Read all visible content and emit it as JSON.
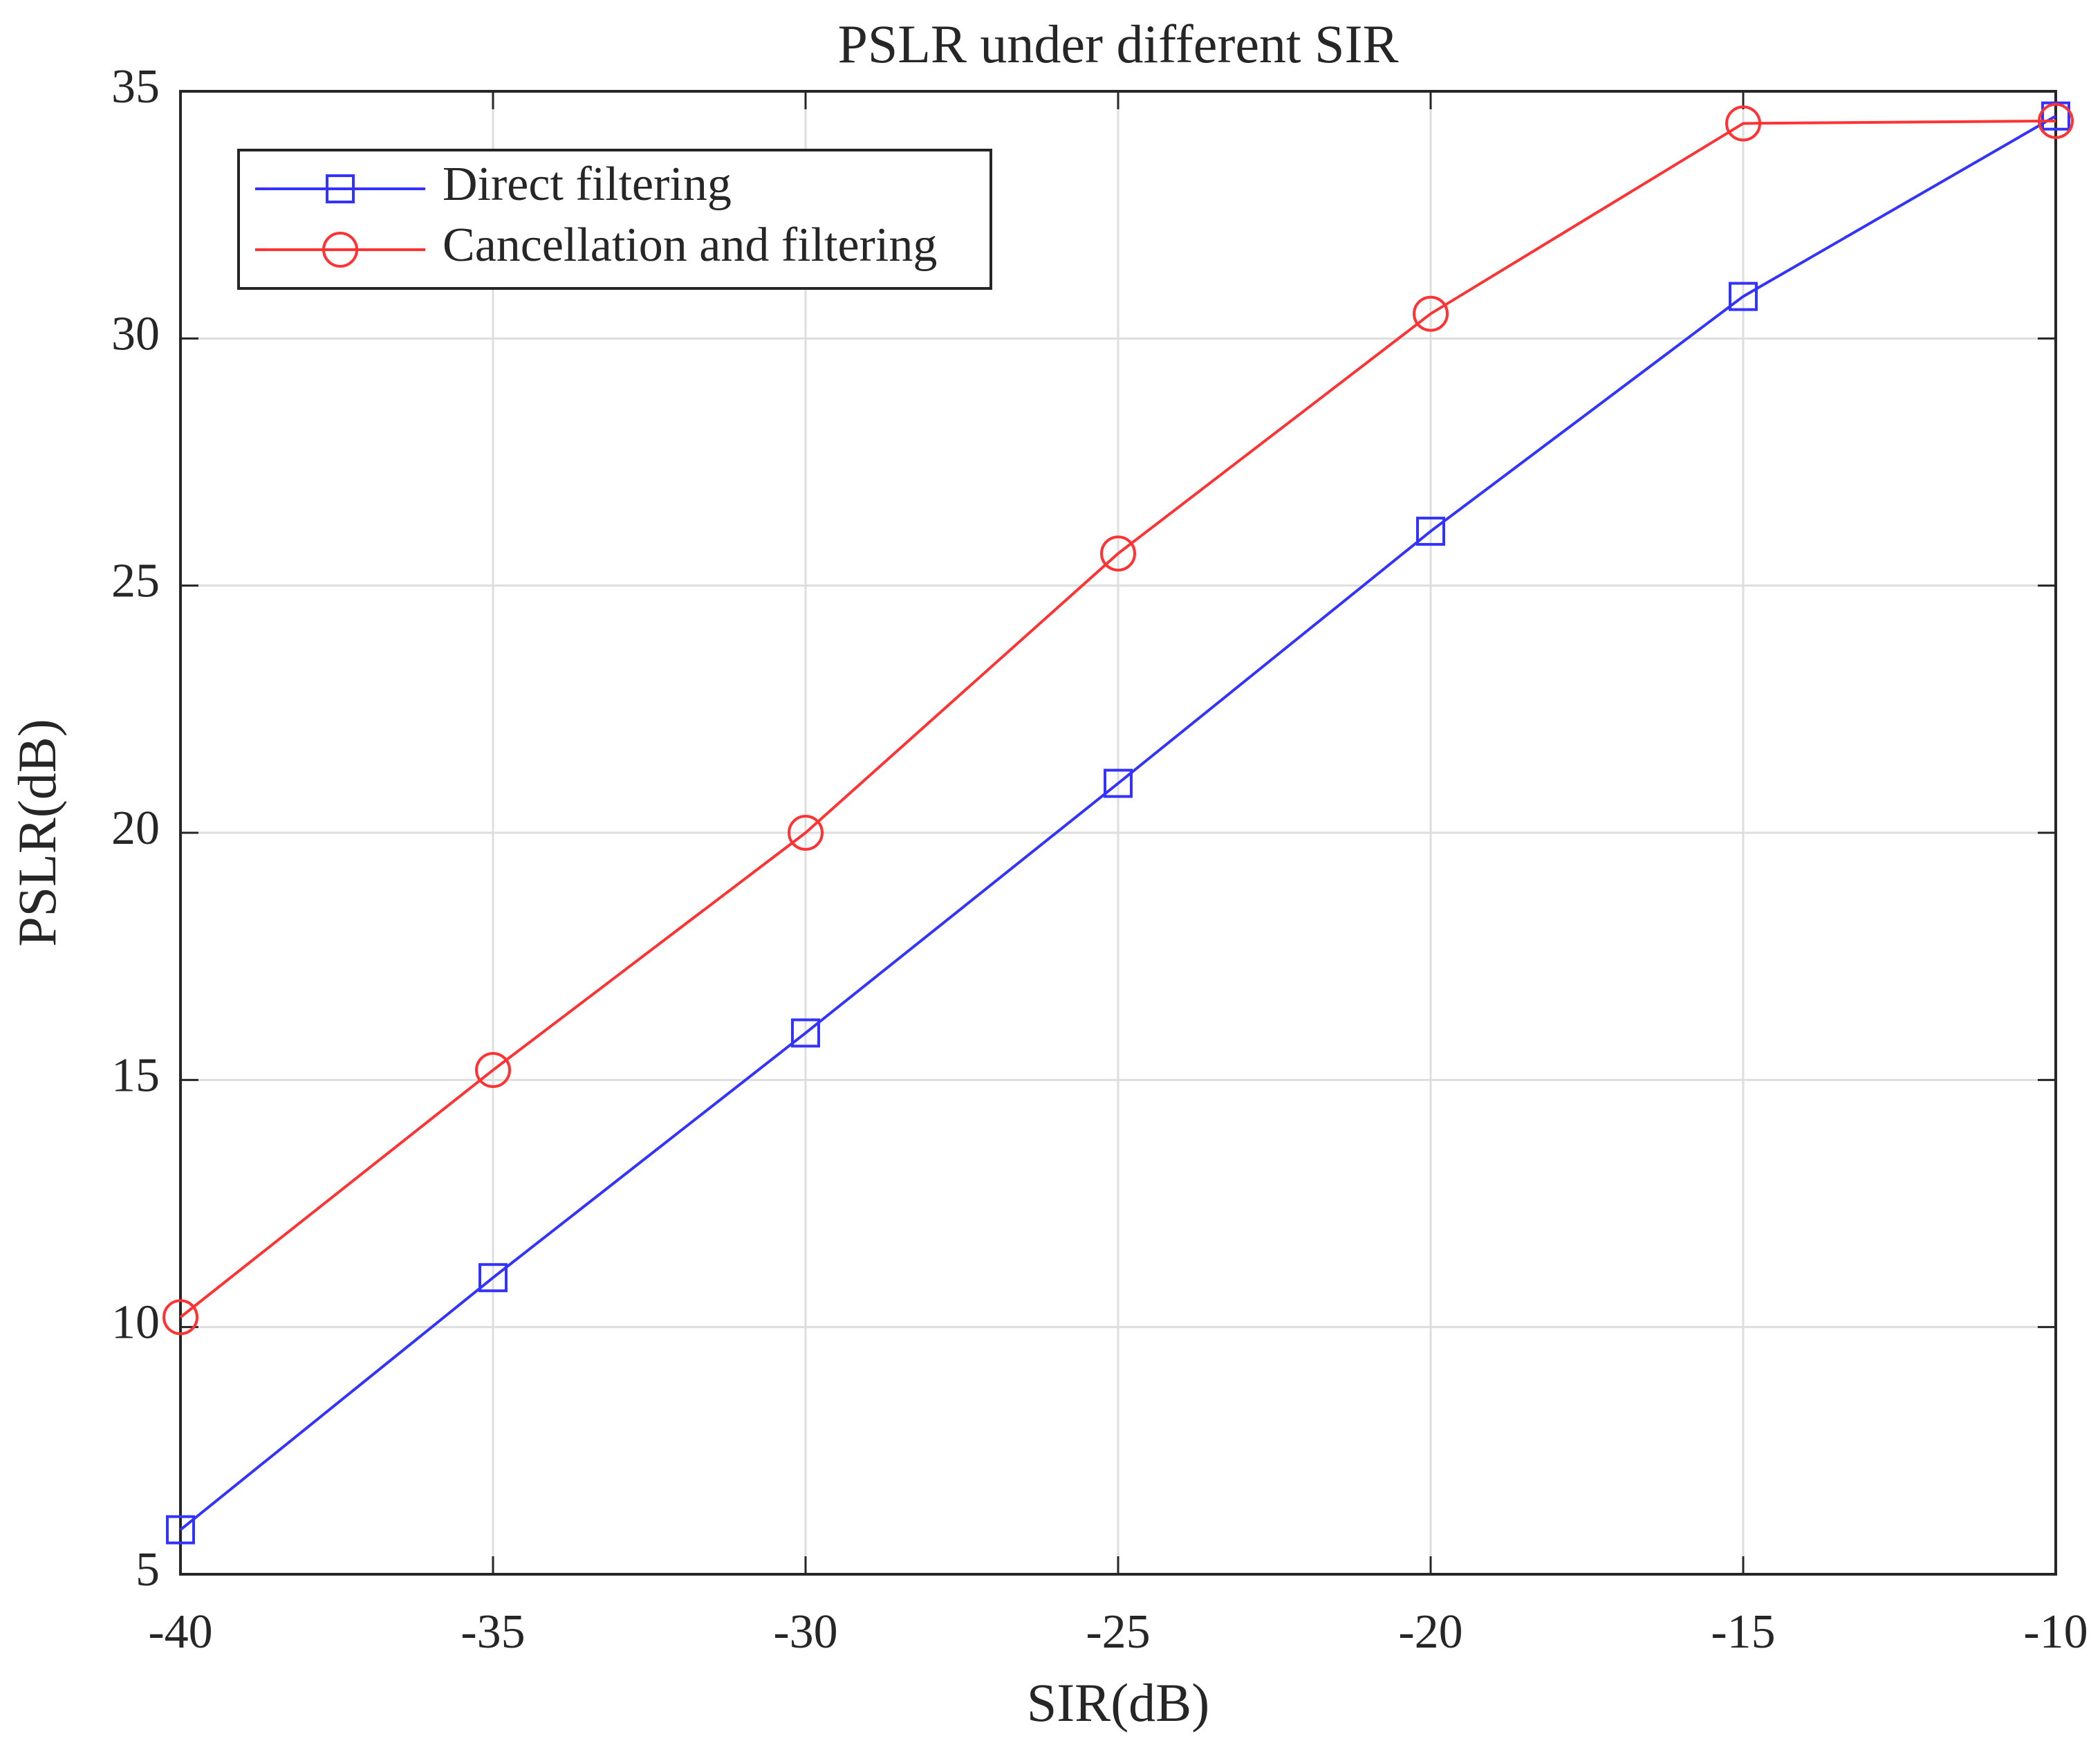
{
  "chart_data": {
    "type": "line",
    "title": "PSLR under different SIR",
    "x_label": "SIR(dB)",
    "y_label": "PSLR(dB)",
    "x": [
      -40,
      -35,
      -30,
      -25,
      -20,
      -15,
      -10
    ],
    "series": [
      {
        "name": "Direct filtering",
        "color": "#3333ff",
        "marker": "square",
        "values": [
          5.9,
          11.0,
          15.95,
          21.0,
          26.1,
          30.85,
          34.5
        ]
      },
      {
        "name": "Cancellation and filtering",
        "color": "#ff3333",
        "marker": "circle",
        "values": [
          10.2,
          15.2,
          20.0,
          25.65,
          30.5,
          34.35,
          34.4
        ]
      }
    ],
    "xlim": [
      -40,
      -10
    ],
    "xticks": [
      -40,
      -35,
      -30,
      -25,
      -20,
      -15,
      -10
    ],
    "ylim": [
      5,
      35
    ],
    "yticks": [
      5,
      10,
      15,
      20,
      25,
      30,
      35
    ],
    "grid": true,
    "legend_position": "upper-left"
  }
}
